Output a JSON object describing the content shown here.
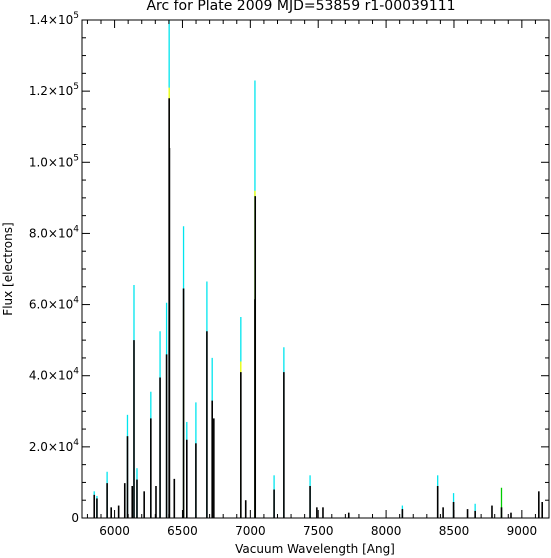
{
  "chart_data": {
    "type": "line",
    "title": "Arc for Plate 2009   MJD=53859   r1-00039111",
    "xlabel": "Vacuum Wavelength [Ang]",
    "ylabel": "Flux [electrons]",
    "xlim": [
      5760,
      9200
    ],
    "ylim": [
      0,
      140000
    ],
    "x_ticks": [
      6000,
      6500,
      7000,
      7500,
      8000,
      8500,
      9000
    ],
    "x_tick_labels": [
      "6000",
      "6500",
      "7000",
      "7500",
      "8000",
      "8500",
      "9000"
    ],
    "y_ticks": [
      0,
      20000,
      40000,
      60000,
      80000,
      100000,
      120000,
      140000
    ],
    "y_tick_labels": [
      {
        "mant": "0",
        "exp": ""
      },
      {
        "mant": "2.0×10",
        "exp": "4"
      },
      {
        "mant": "4.0×10",
        "exp": "4"
      },
      {
        "mant": "6.0×10",
        "exp": "4"
      },
      {
        "mant": "8.0×10",
        "exp": "4"
      },
      {
        "mant": "1.0×10",
        "exp": "5"
      },
      {
        "mant": "1.2×10",
        "exp": "5"
      },
      {
        "mant": "1.4×10",
        "exp": "5"
      }
    ],
    "grid": false,
    "colors": {
      "main": "#000000",
      "upper": "#00e5ee",
      "mid": "#ffff00",
      "alt": "#00cc00"
    },
    "series": [
      {
        "color": "black",
        "lines": [
          [
            5850,
            6500
          ],
          [
            5870,
            5500
          ],
          [
            5945,
            9800
          ],
          [
            5975,
            3000
          ],
          [
            6030,
            3500
          ],
          [
            6075,
            9800
          ],
          [
            6095,
            23000
          ],
          [
            6130,
            9000
          ],
          [
            6143,
            50000
          ],
          [
            6165,
            10800
          ],
          [
            6218,
            7500
          ],
          [
            6267,
            28000
          ],
          [
            6305,
            9000
          ],
          [
            6335,
            39500
          ],
          [
            6383,
            46000
          ],
          [
            6402,
            118000
          ],
          [
            6404,
            104000
          ],
          [
            6440,
            11000
          ],
          [
            6508,
            64500
          ],
          [
            6532,
            22000
          ],
          [
            6599,
            21000
          ],
          [
            6680,
            52500
          ],
          [
            6719,
            33000
          ],
          [
            6731,
            28000
          ],
          [
            6930,
            41000
          ],
          [
            6966,
            5000
          ],
          [
            7034,
            61500
          ],
          [
            7036,
            90500
          ],
          [
            7175,
            8000
          ],
          [
            7247,
            41000
          ],
          [
            7440,
            9000
          ],
          [
            7490,
            3000
          ],
          [
            7535,
            3000
          ],
          [
            7725,
            1500
          ],
          [
            8120,
            2500
          ],
          [
            8380,
            9000
          ],
          [
            8420,
            3000
          ],
          [
            8497,
            4500
          ],
          [
            8600,
            2500
          ],
          [
            8656,
            2000
          ],
          [
            8780,
            3500
          ],
          [
            8850,
            3000
          ],
          [
            8920,
            1500
          ],
          [
            9125,
            7500
          ],
          [
            9150,
            4500
          ]
        ]
      },
      {
        "color": "cyan",
        "lines": [
          [
            5850,
            7500
          ],
          [
            5870,
            6200
          ],
          [
            5945,
            13000
          ],
          [
            6095,
            29000
          ],
          [
            6143,
            65500
          ],
          [
            6165,
            14000
          ],
          [
            6267,
            35500
          ],
          [
            6335,
            52500
          ],
          [
            6383,
            60500
          ],
          [
            6402,
            140000
          ],
          [
            6508,
            82000
          ],
          [
            6532,
            27000
          ],
          [
            6599,
            32500
          ],
          [
            6680,
            66500
          ],
          [
            6719,
            45000
          ],
          [
            6930,
            56500
          ],
          [
            7034,
            123000
          ],
          [
            7175,
            12000
          ],
          [
            7247,
            48000
          ],
          [
            7440,
            12000
          ],
          [
            8120,
            3500
          ],
          [
            8380,
            12000
          ],
          [
            8497,
            7000
          ],
          [
            8656,
            4000
          ]
        ]
      },
      {
        "color": "yellow",
        "lines": [
          [
            6402,
            121000
          ],
          [
            6508,
            58500
          ],
          [
            6930,
            44000
          ],
          [
            7034,
            92000
          ]
        ]
      },
      {
        "color": "green",
        "lines": [
          [
            8850,
            8500
          ]
        ]
      }
    ]
  }
}
